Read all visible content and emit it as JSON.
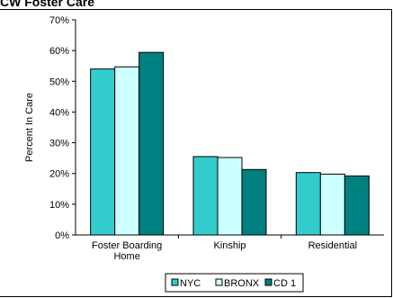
{
  "title_fragment": "CW Foster Care",
  "chart_data": {
    "type": "bar",
    "categories": [
      [
        "Foster Boarding",
        "Home"
      ],
      [
        "Kinship"
      ],
      [
        "Residential"
      ]
    ],
    "series": [
      {
        "name": "NYC",
        "values": [
          54,
          25.5,
          20.3
        ],
        "color": "#33cccc"
      },
      {
        "name": "BRONX",
        "values": [
          54.7,
          25.2,
          19.8
        ],
        "color": "#ccffff"
      },
      {
        "name": "CD 1",
        "values": [
          59.4,
          21.3,
          19.2
        ],
        "color": "#008080"
      }
    ],
    "ylabel": "Percent In Care",
    "xlabel": "",
    "ylim": [
      0,
      70
    ],
    "yticks": [
      "0%",
      "10%",
      "20%",
      "30%",
      "40%",
      "50%",
      "60%",
      "70%"
    ],
    "grid": false,
    "legend_position": "bottom"
  }
}
